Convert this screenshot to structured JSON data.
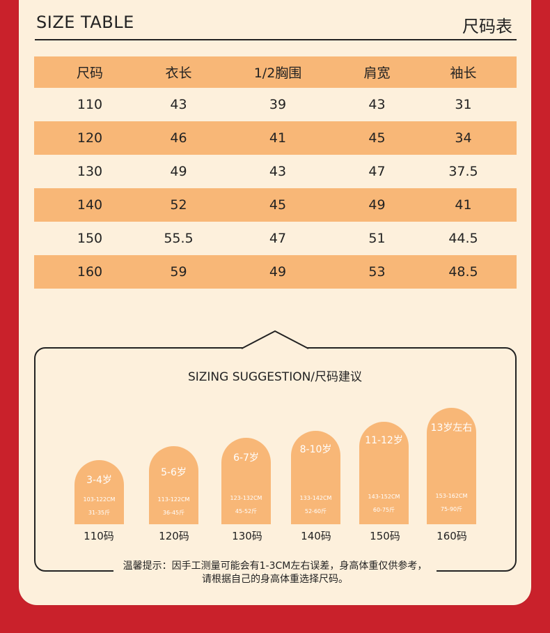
{
  "header": {
    "left": "SIZE TABLE",
    "right": "尺码表"
  },
  "table": {
    "columns": [
      "尺码",
      "衣长",
      "1/2胸围",
      "肩宽",
      "袖长"
    ],
    "rows": [
      [
        "110",
        "43",
        "39",
        "43",
        "31"
      ],
      [
        "120",
        "46",
        "41",
        "45",
        "34"
      ],
      [
        "130",
        "49",
        "43",
        "47",
        "37.5"
      ],
      [
        "140",
        "52",
        "45",
        "49",
        "41"
      ],
      [
        "150",
        "55.5",
        "47",
        "51",
        "44.5"
      ],
      [
        "160",
        "59",
        "49",
        "53",
        "48.5"
      ]
    ]
  },
  "suggestion": {
    "title": "SIZING SUGGESTION/尺码建议",
    "items": [
      {
        "age": "3-4岁",
        "height": "103-122CM",
        "weight": "31-35斤",
        "size": "110码"
      },
      {
        "age": "5-6岁",
        "height": "113-122CM",
        "weight": "36-45斤",
        "size": "120码"
      },
      {
        "age": "6-7岁",
        "height": "123-132CM",
        "weight": "45-52斤",
        "size": "130码"
      },
      {
        "age": "8-10岁",
        "height": "133-142CM",
        "weight": "52-60斤",
        "size": "140码"
      },
      {
        "age": "11-12岁",
        "height": "143-152CM",
        "weight": "60-75斤",
        "size": "150码"
      },
      {
        "age": "13岁左右",
        "height": "153-162CM",
        "weight": "75-90斤",
        "size": "160码"
      }
    ],
    "note_line1": "温馨提示：因手工测量可能会有1-3CM左右误差，身高体重仅供参考，",
    "note_line2": "请根据自己的身高体重选择尺码。"
  },
  "colors": {
    "background_red": "#c9212b",
    "card": "#fdf0dc",
    "band_orange": "#f8b777",
    "text": "#222222"
  }
}
